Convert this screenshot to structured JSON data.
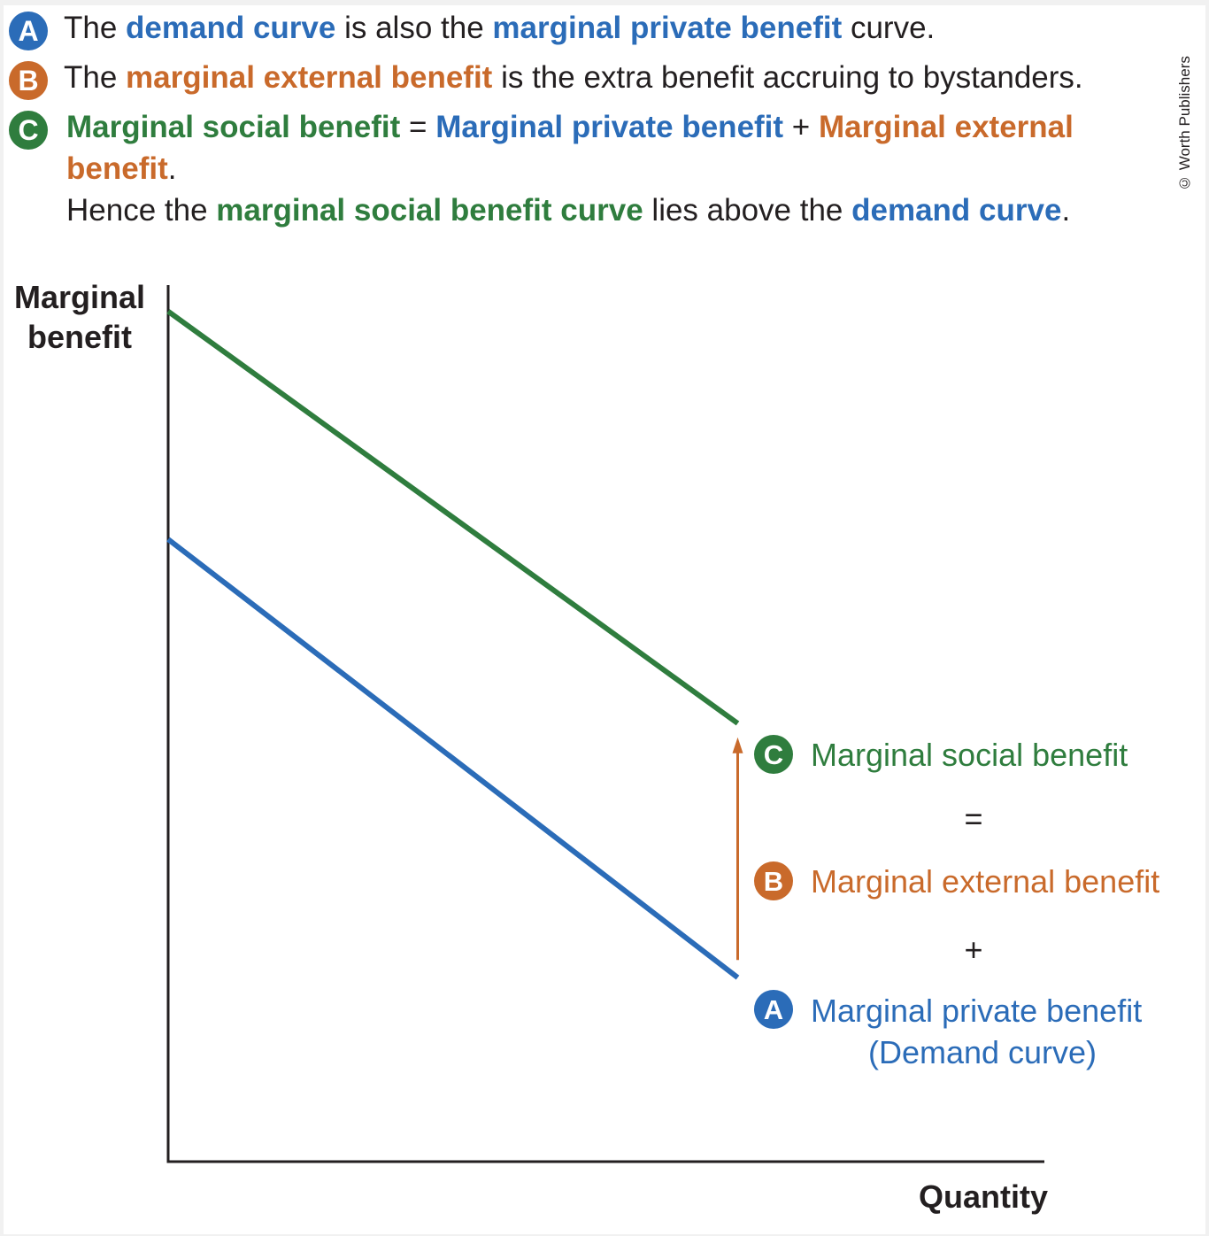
{
  "notes": [
    {
      "badge": "A",
      "badge_color": "#2b6cb8",
      "parts": [
        {
          "text": "The ",
          "bold": false,
          "color": "default"
        },
        {
          "text": "demand curve",
          "bold": true,
          "color": "blue"
        },
        {
          "text": " is also the ",
          "bold": false,
          "color": "default"
        },
        {
          "text": "marginal private benefit",
          "bold": true,
          "color": "blue"
        },
        {
          "text": " curve.",
          "bold": false,
          "color": "default"
        }
      ]
    },
    {
      "badge": "B",
      "badge_color": "#c96a2b",
      "parts": [
        {
          "text": "The ",
          "bold": false,
          "color": "default"
        },
        {
          "text": "marginal external benefit",
          "bold": true,
          "color": "orange"
        },
        {
          "text": " is the extra benefit accruing to bystanders.",
          "bold": false,
          "color": "default"
        }
      ]
    },
    {
      "badge": "C",
      "badge_color": "#2f7d3e",
      "parts": [
        {
          "text": "Marginal social benefit",
          "bold": true,
          "color": "green"
        },
        {
          "text": " = ",
          "bold": false,
          "color": "default"
        },
        {
          "text": "Marginal private benefit",
          "bold": true,
          "color": "blue"
        },
        {
          "text": " + ",
          "bold": false,
          "color": "default"
        },
        {
          "text": "Marginal external",
          "bold": true,
          "color": "orange"
        }
      ]
    },
    {
      "badge": "",
      "parts": [
        {
          "text": "benefit",
          "bold": true,
          "color": "orange"
        },
        {
          "text": ".",
          "bold": false,
          "color": "default"
        }
      ]
    },
    {
      "badge": "",
      "parts": [
        {
          "text": "Hence the ",
          "bold": false,
          "color": "default"
        },
        {
          "text": "marginal social benefit curve",
          "bold": true,
          "color": "green"
        },
        {
          "text": " lies above the ",
          "bold": false,
          "color": "default"
        },
        {
          "text": "demand curve",
          "bold": true,
          "color": "blue"
        },
        {
          "text": ".",
          "bold": false,
          "color": "default"
        }
      ]
    }
  ],
  "credit": "© Worth Publishers",
  "chart_data": {
    "type": "line",
    "xlabel": "Quantity",
    "ylabel_lines": [
      "Marginal",
      "benefit"
    ],
    "xlim": [
      0,
      10
    ],
    "ylim": [
      0,
      10
    ],
    "grid": false,
    "series": [
      {
        "id": "msb",
        "badge": "C",
        "name": "Marginal social benefit",
        "color": "#2f7d3e",
        "x": [
          0,
          6.5
        ],
        "y": [
          9.7,
          5.0
        ]
      },
      {
        "id": "mpb",
        "badge": "A",
        "name": "Marginal private benefit",
        "name_line2": "(Demand curve)",
        "color": "#2b6cb8",
        "x": [
          0,
          6.5
        ],
        "y": [
          7.1,
          2.1
        ]
      }
    ],
    "arrow": {
      "badge": "B",
      "name": "Marginal external benefit",
      "color": "#c96a2b",
      "x": 6.5,
      "from_y": 2.3,
      "to_y": 4.8
    },
    "operators": {
      "equals": "=",
      "plus": "+"
    }
  }
}
